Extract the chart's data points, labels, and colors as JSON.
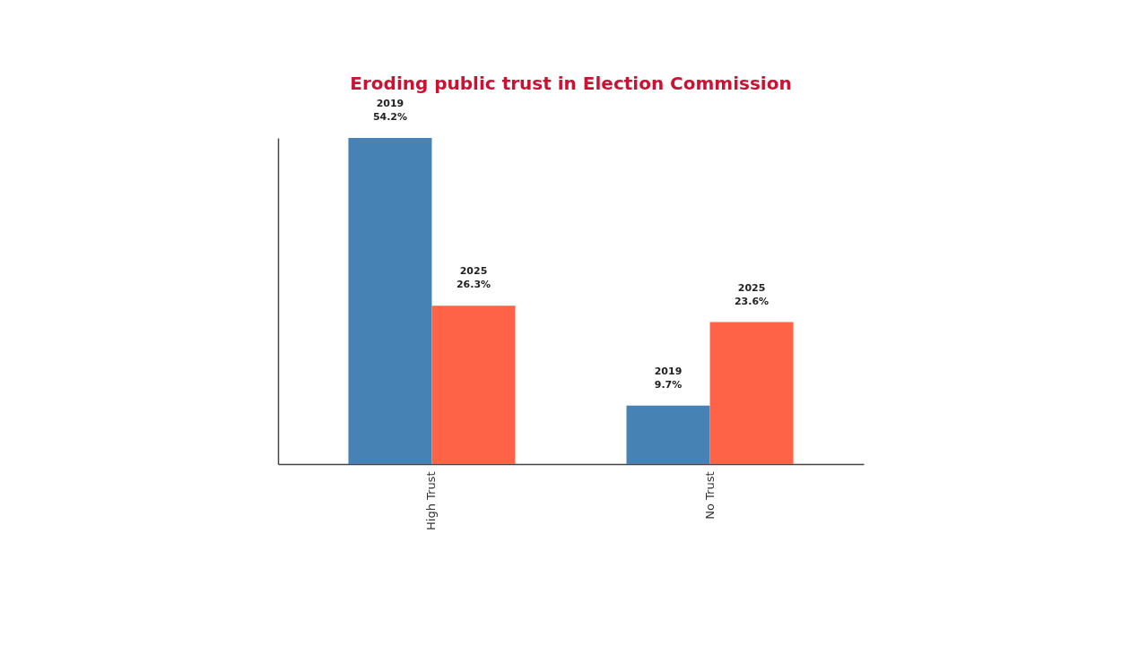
{
  "chart_data": {
    "type": "bar",
    "title": "Eroding public trust in Election Commission",
    "categories": [
      "High Trust",
      "No Trust"
    ],
    "series": [
      {
        "name": "2019",
        "color": "#4682b4",
        "values": [
          54.2,
          9.7
        ],
        "value_labels": [
          "54.2%",
          "9.7%"
        ]
      },
      {
        "name": "2025",
        "color": "#ff6347",
        "values": [
          26.3,
          23.6
        ],
        "value_labels": [
          "26.3%",
          "23.6%"
        ]
      }
    ],
    "tick_labels": "x"
  }
}
